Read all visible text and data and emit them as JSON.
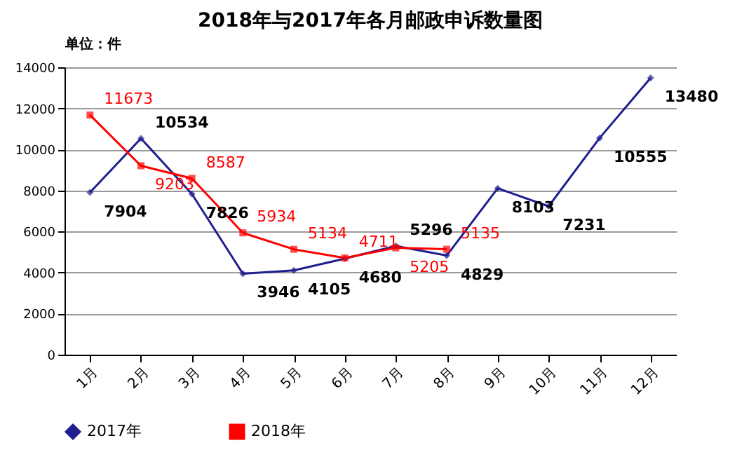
{
  "chart_data": {
    "type": "line",
    "title": "2018年与2017年各月邮政申诉数量图",
    "ylabel": "单位：件",
    "categories": [
      "1月",
      "2月",
      "3月",
      "4月",
      "5月",
      "6月",
      "7月",
      "8月",
      "9月",
      "10月",
      "11月",
      "12月"
    ],
    "series": [
      {
        "name": "2017年",
        "color": "#1f1f8f",
        "marker": "diamond",
        "values": [
          7904,
          10534,
          7826,
          3946,
          4105,
          4680,
          5296,
          4829,
          8103,
          7231,
          10555,
          13480
        ]
      },
      {
        "name": "2018年",
        "color": "#ff0000",
        "marker": "square",
        "values": [
          11673,
          9203,
          8587,
          5934,
          5134,
          4711,
          5205,
          5135,
          null,
          null,
          null,
          null
        ]
      }
    ],
    "ylim": [
      0,
      14000
    ],
    "yticks": [
      0,
      2000,
      4000,
      6000,
      8000,
      10000,
      12000,
      14000
    ],
    "grid": "y",
    "legend": "bottom",
    "data_labels": true,
    "line_style": "solid"
  }
}
